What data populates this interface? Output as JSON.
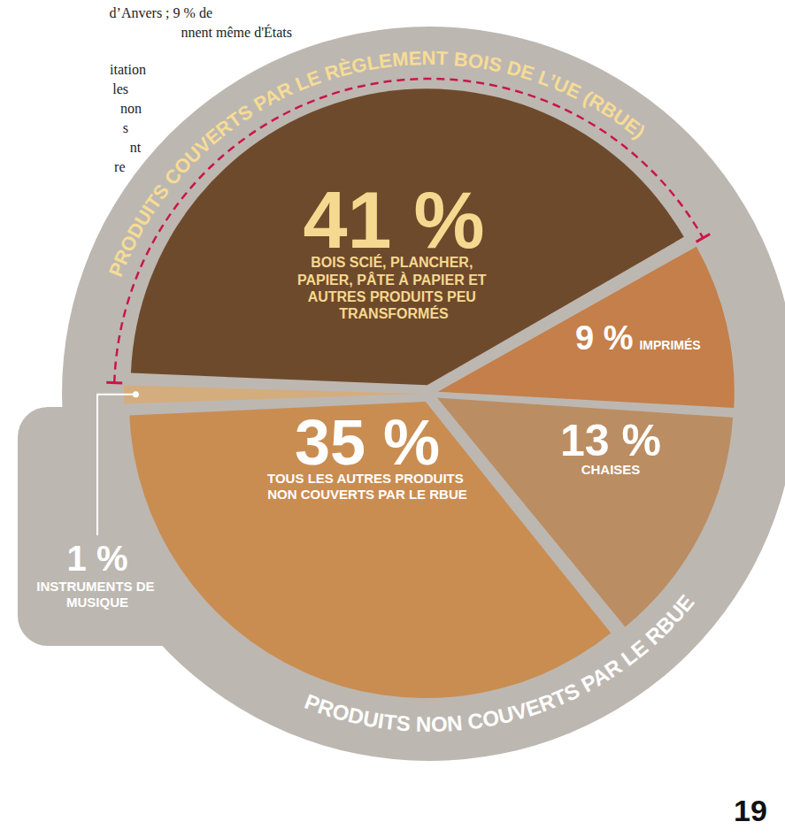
{
  "page": {
    "text_fragments": [
      "d’Anvers ; 9 % de",
      "nnent même d'États",
      "itation",
      "les",
      "non",
      "s",
      "nt",
      "re"
    ],
    "page_number": "19"
  },
  "chart_data": {
    "type": "pie",
    "categories": [
      "BOIS SCIÉ, PLANCHER, PAPIER, PÂTE À PAPIER ET AUTRES PRODUITS PEU TRANSFORMÉS",
      "IMPRIMÉS",
      "CHAISES",
      "TOUS LES AUTRES PRODUITS NON COUVERTS PAR LE RBUE",
      "INSTRUMENTS DE MUSIQUE"
    ],
    "values": [
      41,
      9,
      13,
      35,
      1
    ],
    "value_labels": [
      "41 %",
      "9 %",
      "13 %",
      "35 %",
      "1 %"
    ],
    "colors": [
      "#6e4a2c",
      "#c47f4a",
      "#bb8d62",
      "#c98d52",
      "#d4ad7e"
    ],
    "data_labels": true,
    "annotations": [
      "PRODUITS COUVERTS PAR LE RÈGLEMENT BOIS DE L’UE (RBUE)",
      "PRODUITS NON COUVERTS PAR LE RBUE"
    ]
  }
}
